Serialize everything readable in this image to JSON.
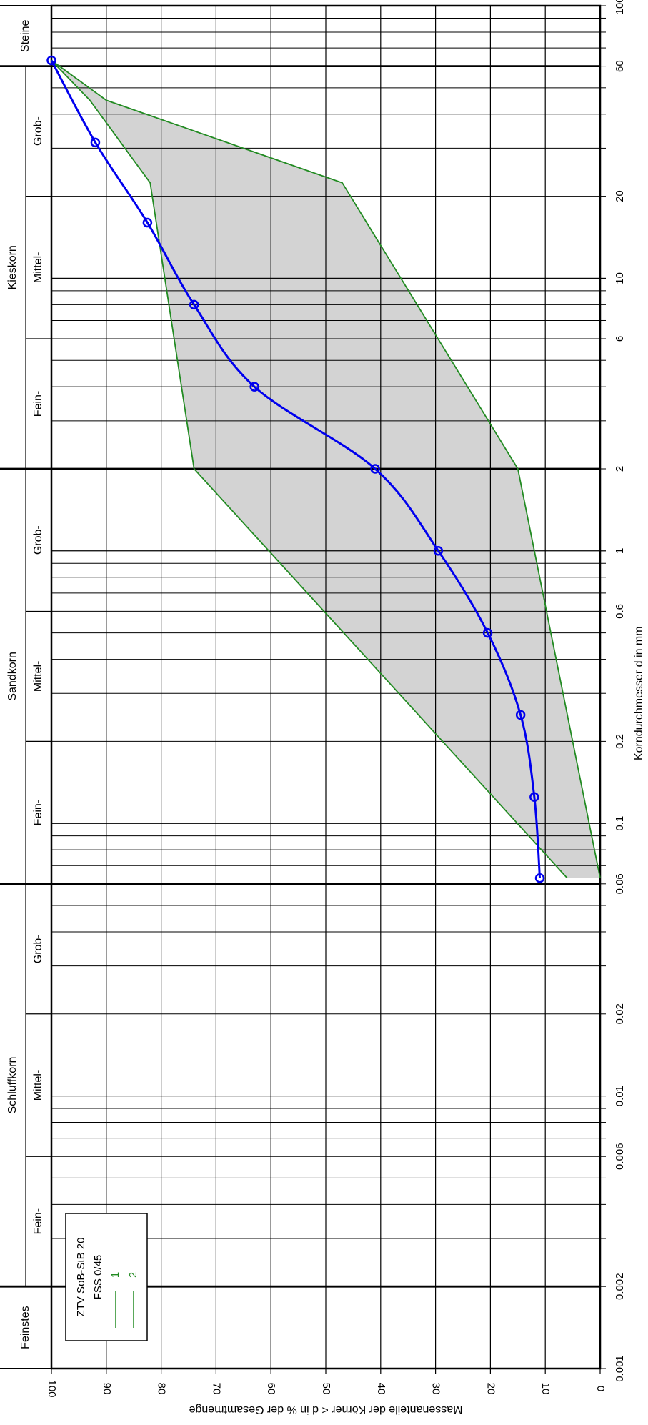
{
  "chart_data": {
    "type": "line",
    "xlabel": "Korndurchmesser d in mm",
    "ylabel": "Massenanteile der Körner < d in % der Gesamtmenge",
    "x_scale": "log",
    "xlim": [
      0.001,
      100
    ],
    "ylim": [
      0,
      100
    ],
    "grid": true,
    "x_tick_labels": [
      {
        "value": 0.001,
        "label": "0.001"
      },
      {
        "value": 0.002,
        "label": "0.002"
      },
      {
        "value": 0.006,
        "label": "0.006"
      },
      {
        "value": 0.01,
        "label": "0.01"
      },
      {
        "value": 0.02,
        "label": "0.02"
      },
      {
        "value": 0.06,
        "label": "0.06"
      },
      {
        "value": 0.1,
        "label": "0.1"
      },
      {
        "value": 0.2,
        "label": "0.2"
      },
      {
        "value": 0.6,
        "label": "0.6"
      },
      {
        "value": 1,
        "label": "1"
      },
      {
        "value": 2,
        "label": "2"
      },
      {
        "value": 6,
        "label": "6"
      },
      {
        "value": 10,
        "label": "10"
      },
      {
        "value": 20,
        "label": "20"
      },
      {
        "value": 60,
        "label": "60"
      },
      {
        "value": 100,
        "label": "100"
      }
    ],
    "y_ticks": [
      0,
      10,
      20,
      30,
      40,
      50,
      60,
      70,
      80,
      90,
      100
    ],
    "soil_classes": [
      {
        "name": "Feinstes",
        "from": 0.001,
        "to": 0.002
      },
      {
        "name": "Schluffkorn",
        "from": 0.002,
        "to": 0.06
      },
      {
        "name": "Sandkorn",
        "from": 0.06,
        "to": 2
      },
      {
        "name": "Kieskorn",
        "from": 2,
        "to": 60
      },
      {
        "name": "Steine",
        "from": 60,
        "to": 100
      }
    ],
    "subclasses": [
      {
        "name": "Fein-",
        "from": 0.002,
        "to": 0.006
      },
      {
        "name": "Mittel-",
        "from": 0.006,
        "to": 0.02
      },
      {
        "name": "Grob-",
        "from": 0.02,
        "to": 0.06
      },
      {
        "name": "Fein-",
        "from": 0.06,
        "to": 0.2
      },
      {
        "name": "Mittel-",
        "from": 0.2,
        "to": 0.6
      },
      {
        "name": "Grob-",
        "from": 0.6,
        "to": 2
      },
      {
        "name": "Fein-",
        "from": 2,
        "to": 6
      },
      {
        "name": "Mittel-",
        "from": 6,
        "to": 20
      },
      {
        "name": "Grob-",
        "from": 20,
        "to": 60
      }
    ],
    "series": [
      {
        "color": "#0000ee",
        "x": [
          0.063,
          0.125,
          0.25,
          0.5,
          1,
          2,
          4,
          8,
          16,
          31.5,
          63
        ],
        "y": [
          11,
          12,
          14.5,
          20.5,
          29.5,
          41,
          63,
          74,
          82.5,
          92,
          100
        ]
      }
    ],
    "envelope": {
      "fill": "#d3d3d3",
      "stroke": "#228b22",
      "curves": [
        {
          "name": "1",
          "x": [
            0.063,
            2,
            22.4,
            45,
            63
          ],
          "y": [
            6,
            74,
            82,
            93,
            100
          ]
        },
        {
          "name": "2",
          "x": [
            0.063,
            2,
            22.4,
            45,
            63
          ],
          "y": [
            0,
            15,
            47,
            90,
            100
          ]
        }
      ]
    },
    "legend": {
      "position": "bottom-left",
      "title_lines": [
        "ZTV SoB-StB 20",
        "FSS 0/45"
      ],
      "entries": [
        {
          "label": "1",
          "color": "#228b22"
        },
        {
          "label": "2",
          "color": "#228b22"
        }
      ]
    }
  }
}
